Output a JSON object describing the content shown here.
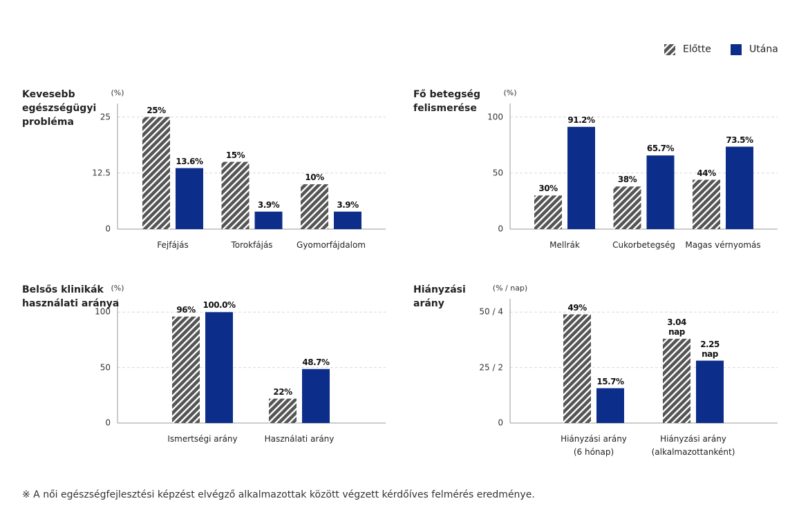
{
  "chart_data": [
    {
      "type": "bar",
      "title": "Kevesebb\negészségügyi\nprobléma",
      "ylabel": "(%)",
      "categories": [
        "Fejfájás",
        "Torokfájás",
        "Gyomorfájdalom"
      ],
      "series": [
        {
          "name": "Előtte",
          "color": "#555555",
          "hatch": true,
          "values": [
            25,
            15,
            10
          ],
          "value_labels": [
            "25%",
            "15%",
            "10%"
          ]
        },
        {
          "name": "Utána",
          "color": "#0c2e8a",
          "values": [
            13.6,
            3.9,
            3.9
          ],
          "value_labels": [
            "13.6%",
            "3.9%",
            "3.9%"
          ]
        }
      ],
      "ylim": [
        0,
        28
      ],
      "yticks": [
        0,
        12.5,
        25
      ],
      "grid": true
    },
    {
      "type": "bar",
      "title": "Fő betegség\nfelismerése",
      "ylabel": "(%)",
      "categories": [
        "Mellrák",
        "Cukorbetegség",
        "Magas vérnyomás"
      ],
      "series": [
        {
          "color": "#555555",
          "hatch": true,
          "values": [
            30,
            38,
            44
          ],
          "value_labels": [
            "30%",
            "38%",
            "44%"
          ]
        },
        {
          "color": "#0c2e8a",
          "values": [
            91.2,
            65.7,
            73.5
          ],
          "value_labels": [
            "91.2%",
            "65.7%",
            "73.5%"
          ]
        }
      ],
      "ylim": [
        0,
        112
      ],
      "yticks": [
        0,
        50,
        100
      ],
      "grid": true
    },
    {
      "type": "bar",
      "title": "Belsős klinikák\nhasználati aránya",
      "ylabel": "(%)",
      "categories": [
        "Ismertségi arány",
        "Használati arány"
      ],
      "series": [
        {
          "color": "#555555",
          "hatch": true,
          "values": [
            96,
            22
          ],
          "value_labels": [
            "96%",
            "22%"
          ]
        },
        {
          "color": "#0c2e8a",
          "values": [
            100.0,
            48.7
          ],
          "value_labels": [
            "100.0%",
            "48.7%"
          ]
        }
      ],
      "ylim": [
        0,
        112
      ],
      "yticks": [
        0,
        50,
        100
      ],
      "grid": true
    },
    {
      "type": "bar",
      "title": "Hiányzási\narány",
      "ylabel": "(% / nap)",
      "categories": [
        "Hiányzási arány\n(6 hónap)",
        "Hiányzási arány\n(alkalmazottanként)"
      ],
      "series": [
        {
          "color": "#555555",
          "hatch": true,
          "values": [
            49,
            null
          ],
          "value_labels": [
            "49%",
            null
          ]
        },
        {
          "color": "#0c2e8a",
          "values": [
            15.7,
            null
          ],
          "value_labels": [
            "15.7%",
            null
          ]
        },
        {
          "color": "#555555",
          "hatch": true,
          "axis": "y2",
          "values": [
            null,
            3.04
          ],
          "value_labels": [
            null,
            "3.04\nnap"
          ]
        },
        {
          "color": "#0c2e8a",
          "axis": "y2",
          "values": [
            null,
            2.25
          ],
          "value_labels": [
            null,
            "2.25\nnap"
          ]
        }
      ],
      "ylim": [
        0,
        56
      ],
      "yticks": [
        0,
        {
          "value": 25,
          "label": "25 / 2"
        },
        {
          "value": 50,
          "label": "50 / 4"
        }
      ],
      "y2lim": [
        0,
        4.48
      ],
      "grid": true
    }
  ],
  "footnote": "※ A női egészségfejlesztési képzést elvégző alkalmazottak között végzett kérdőíves felmérés eredménye."
}
